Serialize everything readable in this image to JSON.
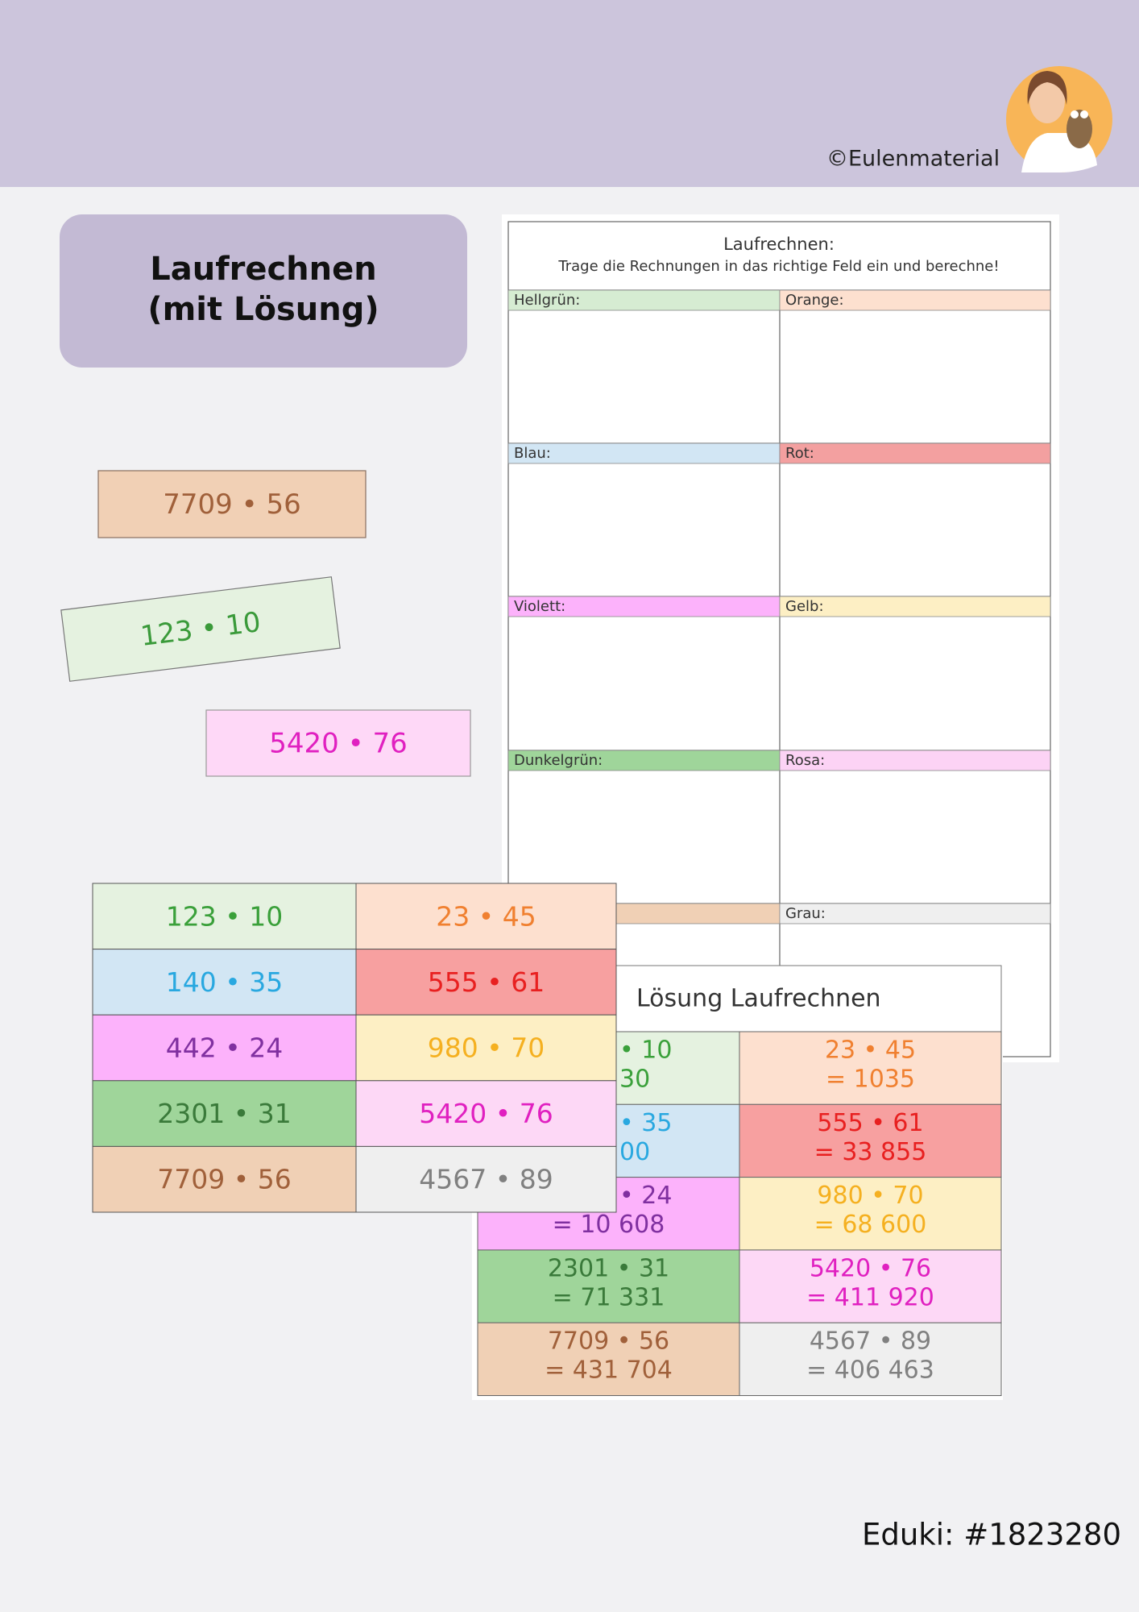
{
  "header": {
    "copyright": "©Eulenmaterial"
  },
  "title_box": {
    "lines": [
      "Laufrechnen",
      "(mit Lösung)"
    ]
  },
  "cards": [
    "7709 • 56",
    "123 • 10",
    "5420 • 76"
  ],
  "worksheet": {
    "title": "Laufrechnen:",
    "instruction": "Trage die Rechnungen in das richtige Feld ein und berechne!",
    "fields": [
      [
        "Hellgrün:",
        "Orange:"
      ],
      [
        "Blau:",
        "Rot:"
      ],
      [
        "Violett:",
        "Gelb:"
      ],
      [
        "Dunkelgrün:",
        "Rosa:"
      ],
      [
        null,
        "Grau:"
      ]
    ]
  },
  "task_grid": {
    "rows": [
      [
        "123 • 10",
        "23 • 45"
      ],
      [
        "140 • 35",
        "555 • 61"
      ],
      [
        "442 • 24",
        "980 • 70"
      ],
      [
        "2301 • 31",
        "5420 • 76"
      ],
      [
        "7709 • 56",
        "4567 • 89"
      ]
    ]
  },
  "solution": {
    "title": "Lösung Laufrechnen",
    "rows": [
      [
        [
          "• 10",
          "30"
        ],
        [
          "23 • 45",
          "= 1035"
        ]
      ],
      [
        [
          "• 35",
          "00"
        ],
        [
          "555 • 61",
          "= 33 855"
        ]
      ],
      [
        [
          "• 24",
          "= 10 608"
        ],
        [
          "980 • 70",
          "= 68 600"
        ]
      ],
      [
        [
          "2301 • 31",
          "= 71 331"
        ],
        [
          "5420 • 76",
          "= 411 920"
        ]
      ],
      [
        [
          "7709 • 56",
          "= 431 704"
        ],
        [
          "4567 • 89",
          "= 406 463"
        ]
      ]
    ]
  },
  "footer": {
    "id": "Eduki: #1823280"
  }
}
